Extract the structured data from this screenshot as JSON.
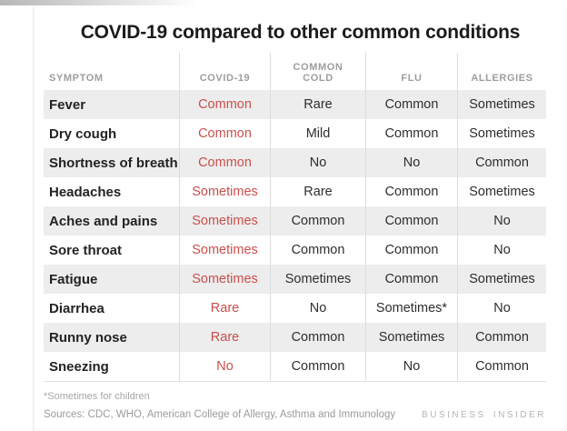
{
  "title": "COVID-19 compared to other common conditions",
  "accent_color": "#c94f4c",
  "stripe_color": "#ededed",
  "table": {
    "columns": [
      "SYMPTOM",
      "COVID-19",
      "COMMON COLD",
      "FLU",
      "ALLERGIES"
    ],
    "rows": [
      {
        "symptom": "Fever",
        "covid19": "Common",
        "common_cold": "Rare",
        "flu": "Common",
        "allergies": "Sometimes"
      },
      {
        "symptom": "Dry cough",
        "covid19": "Common",
        "common_cold": "Mild",
        "flu": "Common",
        "allergies": "Sometimes"
      },
      {
        "symptom": "Shortness of breath",
        "covid19": "Common",
        "common_cold": "No",
        "flu": "No",
        "allergies": "Common"
      },
      {
        "symptom": "Headaches",
        "covid19": "Sometimes",
        "common_cold": "Rare",
        "flu": "Common",
        "allergies": "Sometimes"
      },
      {
        "symptom": "Aches and pains",
        "covid19": "Sometimes",
        "common_cold": "Common",
        "flu": "Common",
        "allergies": "No"
      },
      {
        "symptom": "Sore throat",
        "covid19": "Sometimes",
        "common_cold": "Common",
        "flu": "Common",
        "allergies": "No"
      },
      {
        "symptom": "Fatigue",
        "covid19": "Sometimes",
        "common_cold": "Sometimes",
        "flu": "Common",
        "allergies": "Sometimes"
      },
      {
        "symptom": "Diarrhea",
        "covid19": "Rare",
        "common_cold": "No",
        "flu": "Sometimes*",
        "allergies": "No"
      },
      {
        "symptom": "Runny nose",
        "covid19": "Rare",
        "common_cold": "Common",
        "flu": "Sometimes",
        "allergies": "Common"
      },
      {
        "symptom": "Sneezing",
        "covid19": "No",
        "common_cold": "Common",
        "flu": "No",
        "allergies": "Common"
      }
    ]
  },
  "footnote": "*Sometimes for children",
  "sources": "Sources: CDC, WHO,  American College of Allergy, Asthma and Immunology",
  "brand": "BUSINESS INSIDER"
}
